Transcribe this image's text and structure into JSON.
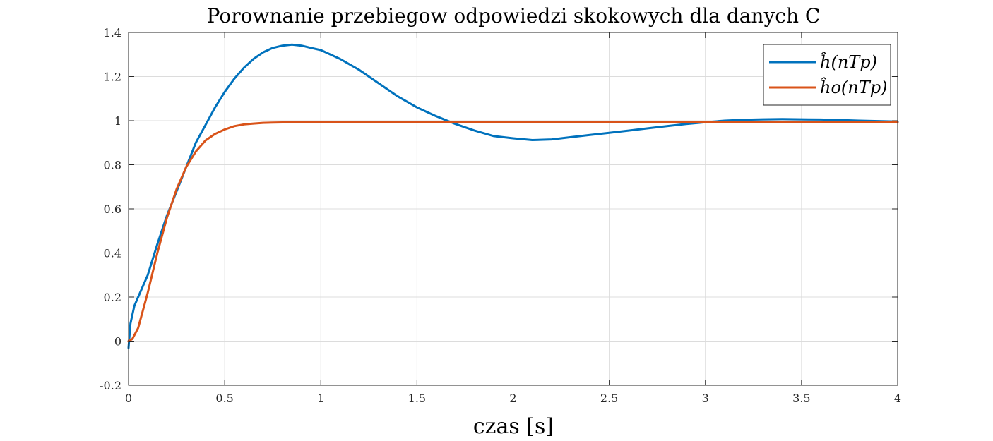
{
  "chart_data": {
    "type": "line",
    "title": "Porownanie przebiegow odpowiedzi skokowych dla danych C",
    "xlabel": "czas [s]",
    "ylabel": "",
    "xlim": [
      0,
      4
    ],
    "ylim": [
      -0.2,
      1.4
    ],
    "xticks": [
      0,
      0.5,
      1,
      1.5,
      2,
      2.5,
      3,
      3.5,
      4
    ],
    "xtick_labels": [
      "0",
      "0.5",
      "1",
      "1.5",
      "2",
      "2.5",
      "3",
      "3.5",
      "4"
    ],
    "yticks": [
      -0.2,
      0,
      0.2,
      0.4,
      0.6,
      0.8,
      1,
      1.2,
      1.4
    ],
    "ytick_labels": [
      "-0.2",
      "0",
      "0.2",
      "0.4",
      "0.6",
      "0.8",
      "1",
      "1.2",
      "1.4"
    ],
    "grid": true,
    "legend_position": "top-right",
    "series": [
      {
        "name": "ĥ(nT_p)",
        "legend_label": "ĥ(nTp)",
        "color": "#0072BD",
        "x": [
          0,
          0.01,
          0.03,
          0.05,
          0.1,
          0.15,
          0.2,
          0.25,
          0.3,
          0.35,
          0.4,
          0.45,
          0.5,
          0.55,
          0.6,
          0.65,
          0.7,
          0.75,
          0.8,
          0.85,
          0.9,
          0.95,
          1.0,
          1.1,
          1.2,
          1.3,
          1.4,
          1.5,
          1.6,
          1.7,
          1.8,
          1.9,
          2.0,
          2.1,
          2.2,
          2.3,
          2.4,
          2.5,
          2.6,
          2.7,
          2.8,
          2.9,
          3.0,
          3.1,
          3.2,
          3.3,
          3.4,
          3.5,
          3.6,
          3.7,
          3.8,
          3.9,
          4.0
        ],
        "y": [
          -0.03,
          0.08,
          0.16,
          0.2,
          0.3,
          0.44,
          0.57,
          0.68,
          0.79,
          0.9,
          0.98,
          1.06,
          1.13,
          1.19,
          1.24,
          1.28,
          1.31,
          1.33,
          1.34,
          1.345,
          1.34,
          1.33,
          1.32,
          1.28,
          1.23,
          1.17,
          1.11,
          1.06,
          1.02,
          0.985,
          0.955,
          0.93,
          0.92,
          0.912,
          0.915,
          0.925,
          0.935,
          0.945,
          0.955,
          0.965,
          0.975,
          0.985,
          0.993,
          1.0,
          1.004,
          1.006,
          1.007,
          1.006,
          1.005,
          1.003,
          1.0,
          0.998,
          0.996
        ]
      },
      {
        "name": "ĥ_o(nT_p)",
        "legend_label": "ĥo(nTp)",
        "color": "#D95319",
        "x": [
          0,
          0.02,
          0.05,
          0.1,
          0.15,
          0.2,
          0.25,
          0.3,
          0.35,
          0.4,
          0.45,
          0.5,
          0.55,
          0.6,
          0.65,
          0.7,
          0.75,
          0.8,
          0.9,
          1.0,
          1.5,
          2.0,
          2.5,
          3.0,
          3.5,
          4.0
        ],
        "y": [
          0,
          0.01,
          0.06,
          0.22,
          0.4,
          0.56,
          0.69,
          0.79,
          0.86,
          0.91,
          0.94,
          0.96,
          0.975,
          0.983,
          0.987,
          0.99,
          0.991,
          0.992,
          0.992,
          0.992,
          0.992,
          0.992,
          0.992,
          0.992,
          0.992,
          0.992
        ]
      }
    ]
  }
}
